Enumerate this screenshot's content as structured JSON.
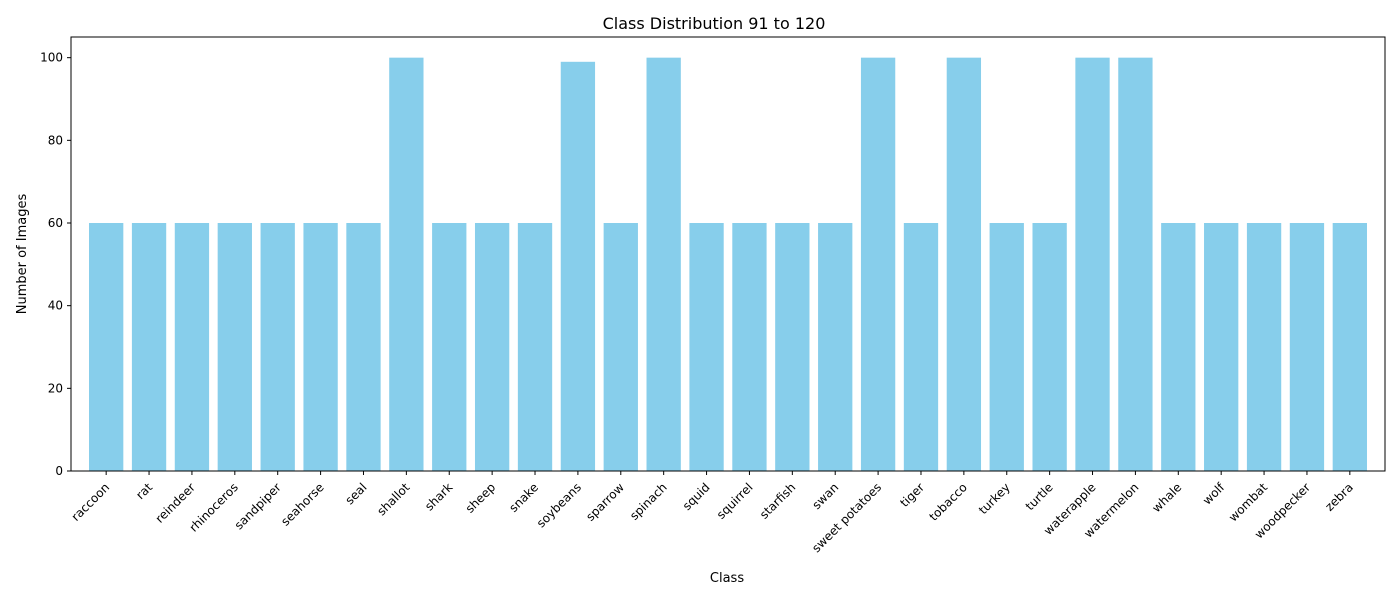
{
  "chart_data": {
    "type": "bar",
    "title": "Class Distribution 91 to 120",
    "xlabel": "Class",
    "ylabel": "Number of Images",
    "ylim": [
      0,
      105
    ],
    "yticks": [
      0,
      20,
      40,
      60,
      80,
      100
    ],
    "grid": false,
    "bar_color": "#87CEEB",
    "categories": [
      "raccoon",
      "rat",
      "reindeer",
      "rhinoceros",
      "sandpiper",
      "seahorse",
      "seal",
      "shallot",
      "shark",
      "sheep",
      "snake",
      "soybeans",
      "sparrow",
      "spinach",
      "squid",
      "squirrel",
      "starfish",
      "swan",
      "sweet potatoes",
      "tiger",
      "tobacco",
      "turkey",
      "turtle",
      "waterapple",
      "watermelon",
      "whale",
      "wolf",
      "wombat",
      "woodpecker",
      "zebra"
    ],
    "values": [
      60,
      60,
      60,
      60,
      60,
      60,
      60,
      100,
      60,
      60,
      60,
      99,
      60,
      100,
      60,
      60,
      60,
      60,
      100,
      60,
      100,
      60,
      60,
      100,
      100,
      60,
      60,
      60,
      60,
      60
    ]
  }
}
